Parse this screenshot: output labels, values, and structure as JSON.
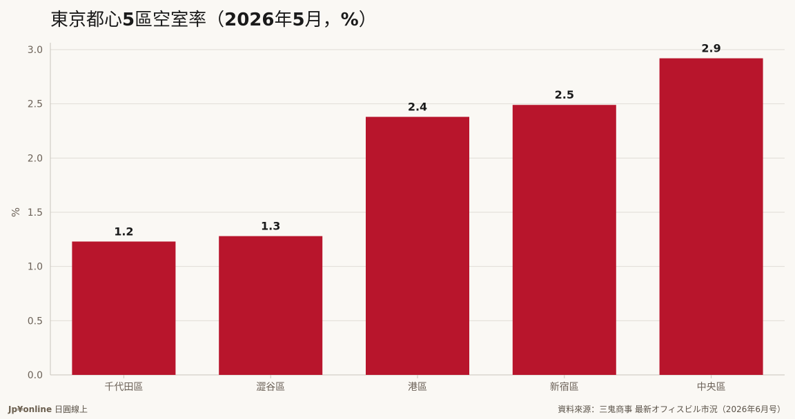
{
  "header": {
    "title_part1": "東京都心",
    "title_part2": "5",
    "title_part3": "區空室率（",
    "title_part4": "2026",
    "title_part5": "年",
    "title_part6": "5",
    "title_part7": "月，",
    "title_part8": "%",
    "title_part9": "）"
  },
  "footer": {
    "brand": "Jp¥online",
    "brand_suffix": "日圓線上",
    "source": "資料來源：三鬼商事 最新オフィスビル市況（2026年6月号）"
  },
  "colors": {
    "bar": "#b8152c",
    "grid": "#e0ddd6",
    "axis": "#c8c4bb",
    "tick_text": "#6b6157",
    "label_text": "#1a1a1a",
    "background": "#faf8f4"
  },
  "chart_data": {
    "type": "bar",
    "title": "東京都心5區空室率（2026年5月，%）",
    "xlabel": "",
    "ylabel": "%",
    "categories": [
      "千代田區",
      "澀谷區",
      "港區",
      "新宿區",
      "中央區"
    ],
    "values": [
      1.23,
      1.28,
      2.38,
      2.49,
      2.92
    ],
    "data_labels": [
      "1.2",
      "1.3",
      "2.4",
      "2.5",
      "2.9"
    ],
    "ylim": [
      0,
      3.0
    ],
    "yticks": [
      "0.0",
      "0.5",
      "1.0",
      "1.5",
      "2.0",
      "2.5",
      "3.0"
    ],
    "ytick_values": [
      0,
      0.5,
      1.0,
      1.5,
      2.0,
      2.5,
      3.0
    ],
    "grid": true,
    "legend": "none"
  }
}
